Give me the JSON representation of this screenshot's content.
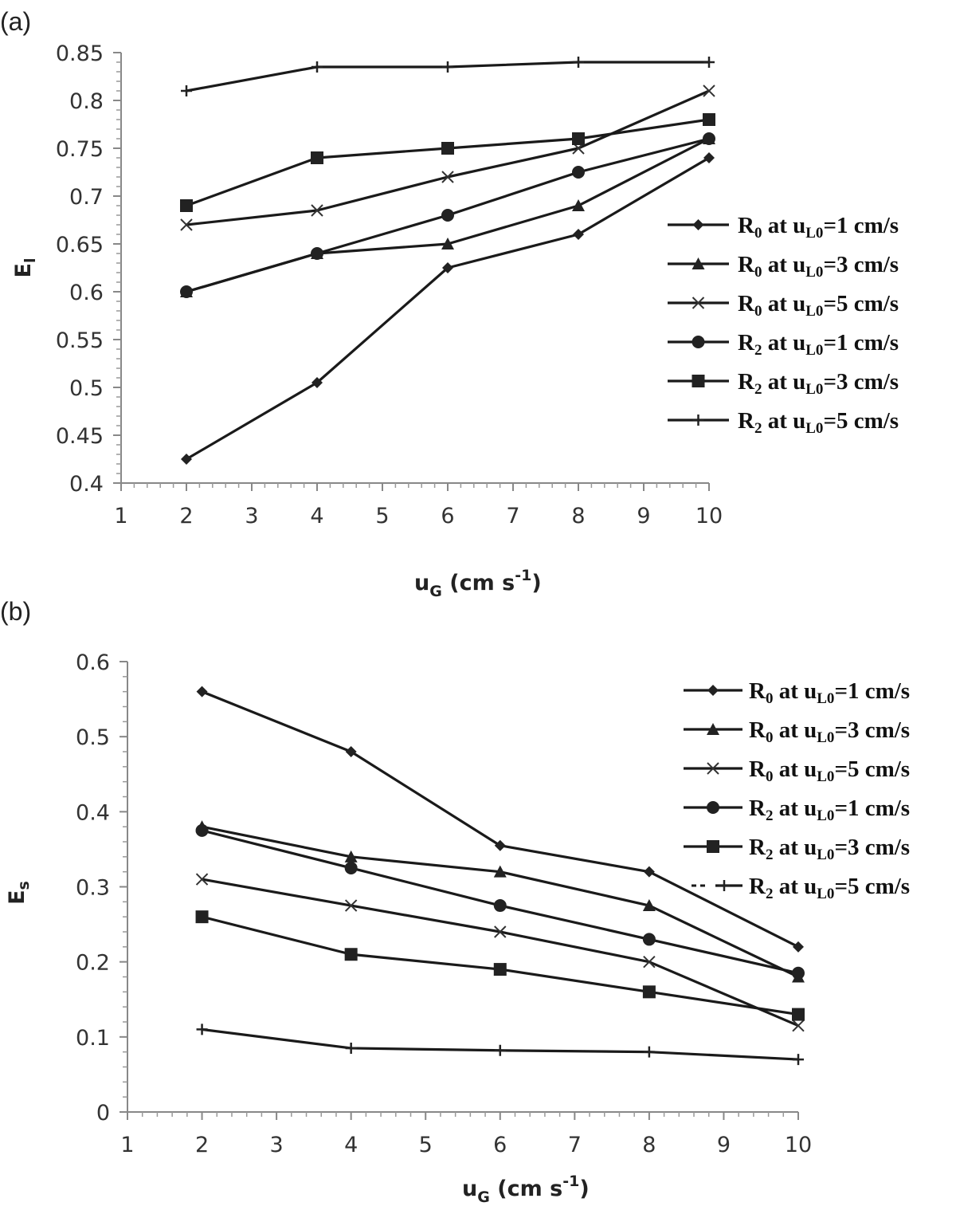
{
  "chart_data": [
    {
      "panel": "(a)",
      "type": "line",
      "xlabel": "uG (cm s-1)",
      "xlabel_main": "u",
      "xlabel_sub": "G",
      "xlabel_unit": " (cm s",
      "xlabel_sup": "-1",
      "xlabel_close": ")",
      "ylabel": "El",
      "ylabel_main": "E",
      "ylabel_sub": "l",
      "xlim": [
        1,
        10
      ],
      "ylim": [
        0.4,
        0.85
      ],
      "xticks": [
        "1",
        "2",
        "3",
        "4",
        "5",
        "6",
        "7",
        "8",
        "9",
        "10"
      ],
      "yticks": [
        "0.4",
        "0.45",
        "0.5",
        "0.55",
        "0.6",
        "0.65",
        "0.7",
        "0.75",
        "0.8",
        "0.85"
      ],
      "x": [
        2,
        4,
        6,
        8,
        10
      ],
      "legend_position": "right",
      "series": [
        {
          "name": "R0 at uL0=1 cm/s",
          "r": "R",
          "r_sub": "0",
          "mid": " at u",
          "u_sub": "L0",
          "tail": "=1 cm/s",
          "marker": "diamond",
          "values": [
            0.425,
            0.505,
            0.625,
            0.66,
            0.74
          ]
        },
        {
          "name": "R0 at uL0=3 cm/s",
          "r": "R",
          "r_sub": "0",
          "mid": " at u",
          "u_sub": "L0",
          "tail": "=3 cm/s",
          "marker": "triangle",
          "values": [
            0.6,
            0.64,
            0.65,
            0.69,
            0.76
          ]
        },
        {
          "name": "R0 at uL0=5 cm/s",
          "r": "R",
          "r_sub": "0",
          "mid": " at u",
          "u_sub": "L0",
          "tail": "=5 cm/s",
          "marker": "x",
          "values": [
            0.67,
            0.685,
            0.72,
            0.75,
            0.81
          ]
        },
        {
          "name": "R2 at uL0=1 cm/s",
          "r": "R",
          "r_sub": "2",
          "mid": " at  u",
          "u_sub": "L0",
          "tail": "=1 cm/s",
          "marker": "circle",
          "values": [
            0.6,
            0.64,
            0.68,
            0.725,
            0.76
          ]
        },
        {
          "name": "R2 at uL0=3 cm/s",
          "r": "R",
          "r_sub": "2",
          "mid": " at u",
          "u_sub": "L0",
          "tail": "=3 cm/s",
          "marker": "square",
          "values": [
            0.69,
            0.74,
            0.75,
            0.76,
            0.78
          ]
        },
        {
          "name": "R2 at uL0=5 cm/s",
          "r": "R",
          "r_sub": "2",
          "mid": " at u",
          "u_sub": "L0",
          "tail": "=5 cm/s",
          "marker": "plus",
          "values": [
            0.81,
            0.835,
            0.835,
            0.84,
            0.84
          ]
        }
      ]
    },
    {
      "panel": "(b)",
      "type": "line",
      "xlabel": "uG (cm s-1)",
      "xlabel_main": "u",
      "xlabel_sub": "G",
      "xlabel_unit": " (cm s",
      "xlabel_sup": "-1",
      "xlabel_close": ")",
      "ylabel": "Es",
      "ylabel_main": "E",
      "ylabel_sub": "s",
      "xlim": [
        1,
        10
      ],
      "ylim": [
        0,
        0.6
      ],
      "xticks": [
        "1",
        "2",
        "3",
        "4",
        "5",
        "6",
        "7",
        "8",
        "9",
        "10"
      ],
      "yticks": [
        "0",
        "0.1",
        "0.2",
        "0.3",
        "0.4",
        "0.5",
        "0.6"
      ],
      "x": [
        2,
        4,
        6,
        8,
        10
      ],
      "legend_position": "top-right",
      "series": [
        {
          "name": "R0 at uL0=1 cm/s",
          "r": "R",
          "r_sub": "0",
          "mid": " at u",
          "u_sub": "L0",
          "tail": "=1 cm/s",
          "marker": "diamond",
          "values": [
            0.56,
            0.48,
            0.355,
            0.32,
            0.22
          ]
        },
        {
          "name": "R0 at uL0=3 cm/s",
          "r": "R",
          "r_sub": "0",
          "mid": " at u",
          "u_sub": "L0",
          "tail": "=3 cm/s",
          "marker": "triangle",
          "values": [
            0.38,
            0.34,
            0.32,
            0.275,
            0.18
          ]
        },
        {
          "name": "R0 at uL0=5 cm/s",
          "r": "R",
          "r_sub": "0",
          "mid": " at u",
          "u_sub": "L0",
          "tail": "=5 cm/s",
          "marker": "x",
          "values": [
            0.31,
            0.275,
            0.24,
            0.2,
            0.115
          ]
        },
        {
          "name": "R2 at uL0=1 cm/s",
          "r": "R",
          "r_sub": "2",
          "mid": " at  u",
          "u_sub": "L0",
          "tail": "=1 cm/s",
          "marker": "circle",
          "values": [
            0.375,
            0.325,
            0.275,
            0.23,
            0.185
          ]
        },
        {
          "name": "R2 at uL0=3 cm/s",
          "r": "R",
          "r_sub": "2",
          "mid": " at u",
          "u_sub": "L0",
          "tail": "=3 cm/s",
          "marker": "square",
          "values": [
            0.26,
            0.21,
            0.19,
            0.16,
            0.13
          ]
        },
        {
          "name": "R2 at uL0=5 cm/s",
          "r": "R",
          "r_sub": "2",
          "mid": " at u",
          "u_sub": "L0",
          "tail": "=5 cm/s",
          "legend_prefix": "--",
          "marker": "plus",
          "values": [
            0.11,
            0.085,
            0.082,
            0.08,
            0.07
          ]
        }
      ]
    }
  ]
}
